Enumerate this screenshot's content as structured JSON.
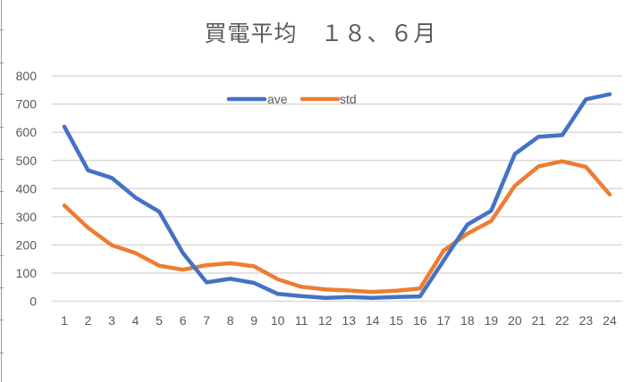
{
  "chart_data": {
    "type": "line",
    "title": "買電平均　１８、６月",
    "xlabel": "",
    "ylabel": "",
    "categories": [
      "1",
      "2",
      "3",
      "4",
      "5",
      "6",
      "7",
      "8",
      "9",
      "10",
      "11",
      "12",
      "13",
      "14",
      "15",
      "16",
      "17",
      "18",
      "19",
      "20",
      "21",
      "22",
      "23",
      "24"
    ],
    "series": [
      {
        "name": "ave",
        "color": "#4472C4",
        "values": [
          620,
          465,
          438,
          368,
          318,
          171,
          67,
          80,
          65,
          26,
          18,
          12,
          15,
          12,
          15,
          17,
          145,
          272,
          321,
          523,
          584,
          590,
          717,
          735
        ]
      },
      {
        "name": "std",
        "color": "#ED7D31",
        "values": [
          340,
          261,
          199,
          171,
          126,
          112,
          128,
          135,
          124,
          78,
          51,
          42,
          38,
          33,
          37,
          45,
          180,
          240,
          285,
          410,
          479,
          497,
          477,
          379
        ]
      }
    ],
    "ylim": [
      0,
      800
    ],
    "yticks": [
      0,
      100,
      200,
      300,
      400,
      500,
      600,
      700,
      800
    ],
    "grid": true,
    "legend_position": "top"
  },
  "colors": {
    "text": "#595959",
    "grid": "#D9D9D9"
  }
}
